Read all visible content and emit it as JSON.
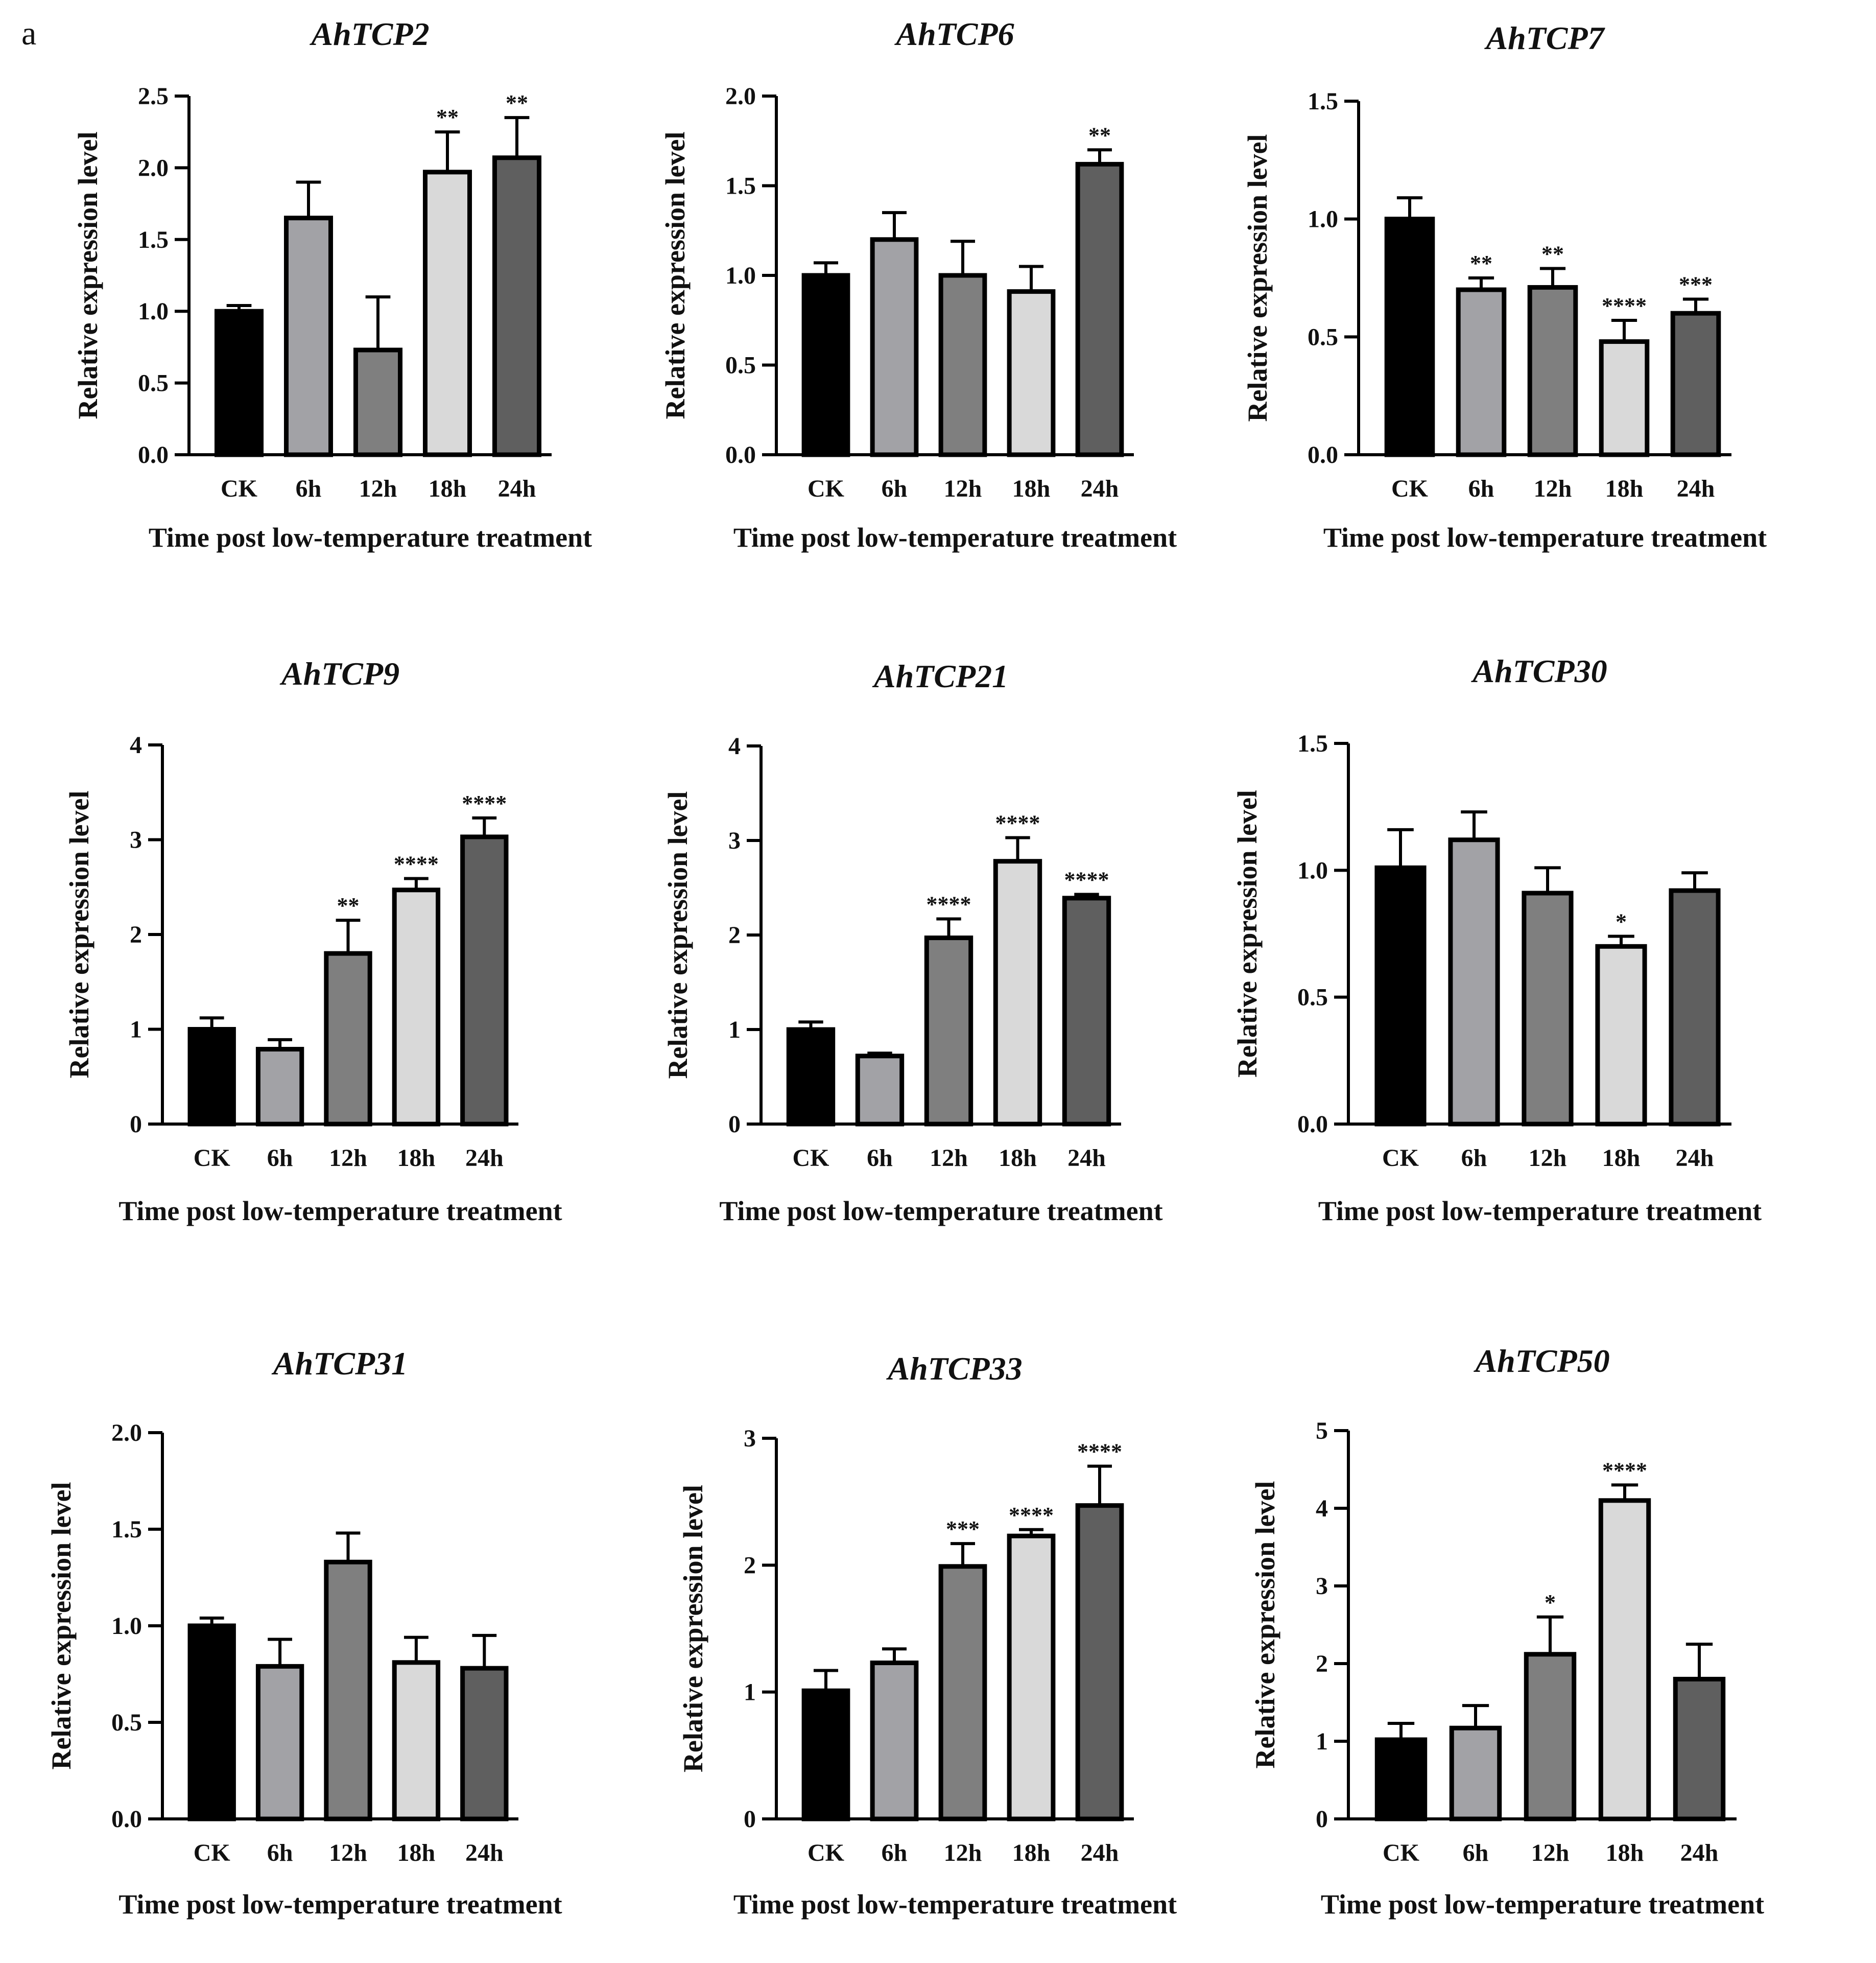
{
  "panel_label": "a",
  "chart_data": [
    {
      "type": "bar",
      "title": "AhTCP2",
      "xlabel": "Time post low-temperature treatment",
      "ylabel": "Relative expression level",
      "categories": [
        "CK",
        "6h",
        "12h",
        "18h",
        "24h"
      ],
      "values": [
        1.0,
        1.65,
        0.73,
        1.97,
        2.07
      ],
      "errors": [
        0.04,
        0.25,
        0.37,
        0.28,
        0.28
      ],
      "significance": [
        "",
        "",
        "",
        "**",
        "**"
      ],
      "ylim": [
        0,
        2.5
      ],
      "yticks": [
        "0.0",
        "0.5",
        "1.0",
        "1.5",
        "2.0",
        "2.5"
      ]
    },
    {
      "type": "bar",
      "title": "AhTCP6",
      "xlabel": "Time post low-temperature treatment",
      "ylabel": "Relative expression level",
      "categories": [
        "CK",
        "6h",
        "12h",
        "18h",
        "24h"
      ],
      "values": [
        1.0,
        1.2,
        1.0,
        0.91,
        1.62
      ],
      "errors": [
        0.07,
        0.15,
        0.19,
        0.14,
        0.08
      ],
      "significance": [
        "",
        "",
        "",
        "",
        "**"
      ],
      "ylim": [
        0,
        2.0
      ],
      "yticks": [
        "0.0",
        "0.5",
        "1.0",
        "1.5",
        "2.0"
      ]
    },
    {
      "type": "bar",
      "title": "AhTCP7",
      "xlabel": "Time post low-temperature treatment",
      "ylabel": "Relative expression level",
      "categories": [
        "CK",
        "6h",
        "12h",
        "18h",
        "24h"
      ],
      "values": [
        1.0,
        0.7,
        0.71,
        0.48,
        0.6
      ],
      "errors": [
        0.09,
        0.05,
        0.08,
        0.09,
        0.06
      ],
      "significance": [
        "",
        "**",
        "**",
        "****",
        "***"
      ],
      "ylim": [
        0,
        1.5
      ],
      "yticks": [
        "0.0",
        "0.5",
        "1.0",
        "1.5"
      ]
    },
    {
      "type": "bar",
      "title": "AhTCP9",
      "xlabel": "Time post low-temperature treatment",
      "ylabel": "Relative expression level",
      "categories": [
        "CK",
        "6h",
        "12h",
        "18h",
        "24h"
      ],
      "values": [
        1.0,
        0.79,
        1.8,
        2.47,
        3.03
      ],
      "errors": [
        0.12,
        0.1,
        0.35,
        0.12,
        0.2
      ],
      "significance": [
        "",
        "",
        "**",
        "****",
        "****"
      ],
      "ylim": [
        0,
        4
      ],
      "yticks": [
        "0",
        "1",
        "2",
        "3",
        "4"
      ]
    },
    {
      "type": "bar",
      "title": "AhTCP21",
      "xlabel": "Time post low-temperature treatment",
      "ylabel": "Relative expression level",
      "categories": [
        "CK",
        "6h",
        "12h",
        "18h",
        "24h"
      ],
      "values": [
        1.0,
        0.72,
        1.97,
        2.78,
        2.39
      ],
      "errors": [
        0.08,
        0.03,
        0.2,
        0.25,
        0.04
      ],
      "significance": [
        "",
        "",
        "****",
        "****",
        "****"
      ],
      "ylim": [
        0,
        4
      ],
      "yticks": [
        "0",
        "1",
        "2",
        "3",
        "4"
      ]
    },
    {
      "type": "bar",
      "title": "AhTCP30",
      "xlabel": "Time post low-temperature treatment",
      "ylabel": "Relative expression level",
      "categories": [
        "CK",
        "6h",
        "12h",
        "18h",
        "24h"
      ],
      "values": [
        1.01,
        1.12,
        0.91,
        0.7,
        0.92
      ],
      "errors": [
        0.15,
        0.11,
        0.1,
        0.04,
        0.07
      ],
      "significance": [
        "",
        "",
        "",
        "*",
        ""
      ],
      "ylim": [
        0,
        1.5
      ],
      "yticks": [
        "0.0",
        "0.5",
        "1.0",
        "1.5"
      ]
    },
    {
      "type": "bar",
      "title": "AhTCP31",
      "xlabel": "Time post low-temperature treatment",
      "ylabel": "Relative expression level",
      "categories": [
        "CK",
        "6h",
        "12h",
        "18h",
        "24h"
      ],
      "values": [
        1.0,
        0.79,
        1.33,
        0.81,
        0.78
      ],
      "errors": [
        0.04,
        0.14,
        0.15,
        0.13,
        0.17
      ],
      "significance": [
        "",
        "",
        "",
        "",
        ""
      ],
      "ylim": [
        0,
        2.0
      ],
      "yticks": [
        "0.0",
        "0.5",
        "1.0",
        "1.5",
        "2.0"
      ]
    },
    {
      "type": "bar",
      "title": "AhTCP33",
      "xlabel": "Time post low-temperature treatment",
      "ylabel": "Relative expression level",
      "categories": [
        "CK",
        "6h",
        "12h",
        "18h",
        "24h"
      ],
      "values": [
        1.01,
        1.23,
        1.99,
        2.23,
        2.47
      ],
      "errors": [
        0.16,
        0.11,
        0.18,
        0.05,
        0.31
      ],
      "significance": [
        "",
        "",
        "***",
        "****",
        "****"
      ],
      "ylim": [
        0,
        3
      ],
      "yticks": [
        "0",
        "1",
        "2",
        "3"
      ]
    },
    {
      "type": "bar",
      "title": "AhTCP50",
      "xlabel": "Time post low-temperature treatment",
      "ylabel": "Relative expression level",
      "categories": [
        "CK",
        "6h",
        "12h",
        "18h",
        "24h"
      ],
      "values": [
        1.02,
        1.17,
        2.12,
        4.1,
        1.8
      ],
      "errors": [
        0.21,
        0.29,
        0.48,
        0.2,
        0.45
      ],
      "significance": [
        "",
        "",
        "*",
        "****",
        ""
      ],
      "ylim": [
        0,
        5
      ],
      "yticks": [
        "0",
        "1",
        "2",
        "3",
        "4",
        "5"
      ]
    }
  ],
  "colors": {
    "bars": [
      "#000000",
      "#a2a2a6",
      "#7f7f7f",
      "#d9d9d9",
      "#5f5f5f"
    ],
    "stroke": "#000000"
  }
}
